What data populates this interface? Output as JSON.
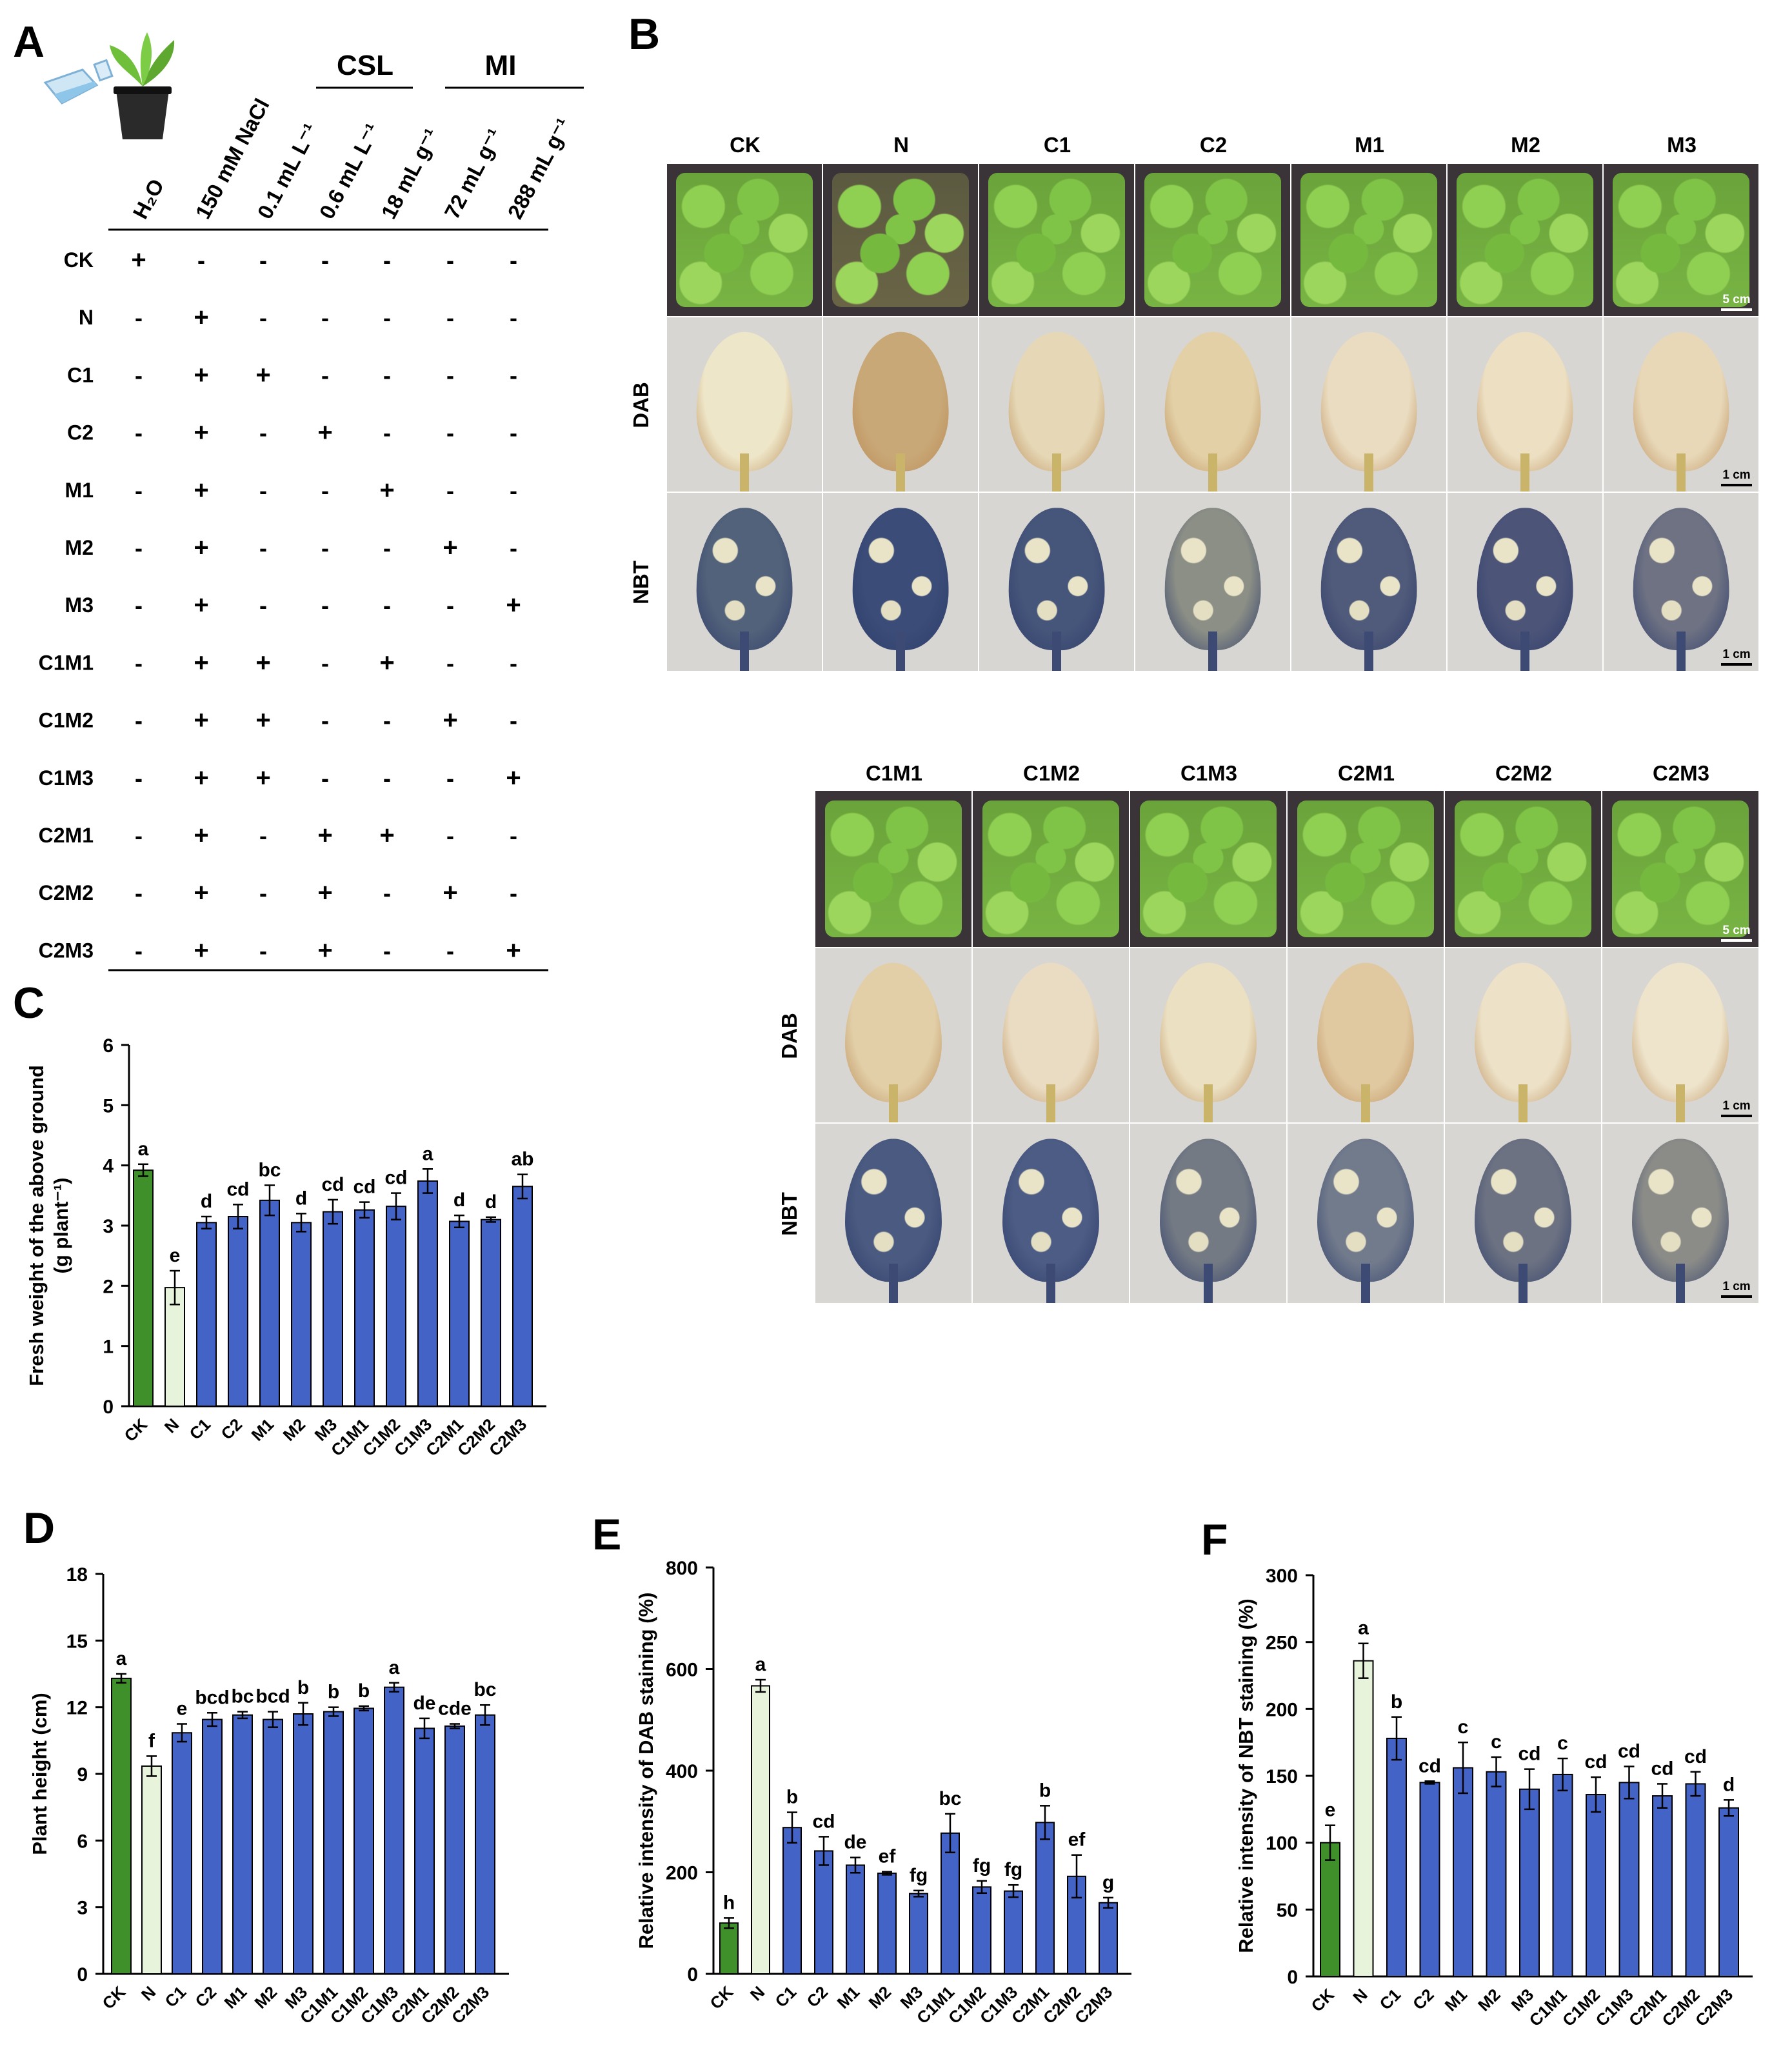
{
  "panel_labels": [
    "A",
    "B",
    "C",
    "D",
    "E",
    "F"
  ],
  "tableA": {
    "group_headers": [
      {
        "label": "CSL"
      },
      {
        "label": "MI"
      }
    ],
    "column_headers": [
      "H₂O",
      "150 mM NaCl",
      "0.1 mL L⁻¹",
      "0.6 mL L⁻¹",
      "18 mL g⁻¹",
      "72 mL g⁻¹",
      "288 mL g⁻¹"
    ],
    "rows": [
      {
        "name": "CK",
        "cells": [
          "+",
          "-",
          "-",
          "-",
          "-",
          "-",
          "-"
        ]
      },
      {
        "name": "N",
        "cells": [
          "-",
          "+",
          "-",
          "-",
          "-",
          "-",
          "-"
        ]
      },
      {
        "name": "C1",
        "cells": [
          "-",
          "+",
          "+",
          "-",
          "-",
          "-",
          "-"
        ]
      },
      {
        "name": "C2",
        "cells": [
          "-",
          "+",
          "-",
          "+",
          "-",
          "-",
          "-"
        ]
      },
      {
        "name": "M1",
        "cells": [
          "-",
          "+",
          "-",
          "-",
          "+",
          "-",
          "-"
        ]
      },
      {
        "name": "M2",
        "cells": [
          "-",
          "+",
          "-",
          "-",
          "-",
          "+",
          "-"
        ]
      },
      {
        "name": "M3",
        "cells": [
          "-",
          "+",
          "-",
          "-",
          "-",
          "-",
          "+"
        ]
      },
      {
        "name": "C1M1",
        "cells": [
          "-",
          "+",
          "+",
          "-",
          "+",
          "-",
          "-"
        ]
      },
      {
        "name": "C1M2",
        "cells": [
          "-",
          "+",
          "+",
          "-",
          "-",
          "+",
          "-"
        ]
      },
      {
        "name": "C1M3",
        "cells": [
          "-",
          "+",
          "+",
          "-",
          "-",
          "-",
          "+"
        ]
      },
      {
        "name": "C2M1",
        "cells": [
          "-",
          "+",
          "-",
          "+",
          "+",
          "-",
          "-"
        ]
      },
      {
        "name": "C2M2",
        "cells": [
          "-",
          "+",
          "-",
          "+",
          "-",
          "+",
          "-"
        ]
      },
      {
        "name": "C2M3",
        "cells": [
          "-",
          "+",
          "-",
          "+",
          "-",
          "-",
          "+"
        ]
      }
    ]
  },
  "panelB": {
    "row_labels": [
      "DAB",
      "NBT"
    ],
    "scale_tray": "5 cm",
    "scale_leaf": "1 cm",
    "top_columns": [
      "CK",
      "N",
      "C1",
      "C2",
      "M1",
      "M2",
      "M3"
    ],
    "bottom_columns": [
      "C1M1",
      "C1M2",
      "C1M3",
      "C2M1",
      "C2M2",
      "C2M3"
    ],
    "dab_colors_top": [
      "#eee6c8",
      "#c9a877",
      "#e6d8b6",
      "#e3d0a6",
      "#eadcc0",
      "#ecdfc2",
      "#e8d8b8"
    ],
    "dab_colors_bottom": [
      "#e2cfa8",
      "#eadcc2",
      "#ebe0c2",
      "#e0c8a0",
      "#ede2c8",
      "#eee4cc"
    ],
    "nbt_colors_top": [
      "#52627a",
      "#3b4c78",
      "#46557a",
      "#8c8f86",
      "#505a7a",
      "#4c5478",
      "#6e7283"
    ],
    "nbt_colors_bottom": [
      "#4a5a80",
      "#4c5c84",
      "#737a84",
      "#727b8c",
      "#6c7282",
      "#8b8c88"
    ]
  },
  "chart_data": [
    {
      "id": "C",
      "type": "bar",
      "ylabel": "Fresh weight of the above ground (g plant⁻¹)",
      "ylabel_lines": [
        "Fresh weight of the above ground",
        "(g plant⁻¹)"
      ],
      "ylim": [
        0,
        6
      ],
      "yticks": [
        0,
        1,
        2,
        3,
        4,
        5,
        6
      ],
      "categories": [
        "CK",
        "N",
        "C1",
        "C2",
        "M1",
        "M2",
        "M3",
        "C1M1",
        "C1M2",
        "C1M3",
        "C2M1",
        "C2M2",
        "C2M3"
      ],
      "values": [
        3.92,
        1.97,
        3.05,
        3.15,
        3.42,
        3.05,
        3.23,
        3.26,
        3.32,
        3.74,
        3.07,
        3.1,
        3.65
      ],
      "errors": [
        0.1,
        0.28,
        0.1,
        0.2,
        0.25,
        0.15,
        0.2,
        0.13,
        0.22,
        0.2,
        0.1,
        0.04,
        0.2
      ],
      "letters": [
        "a",
        "e",
        "d",
        "cd",
        "bc",
        "d",
        "cd",
        "cd",
        "cd",
        "a",
        "d",
        "d",
        "ab"
      ],
      "colors": [
        "#3f8f2a",
        "#e8f3dc",
        "#4463c6",
        "#4463c6",
        "#4463c6",
        "#4463c6",
        "#4463c6",
        "#4463c6",
        "#4463c6",
        "#4463c6",
        "#4463c6",
        "#4463c6",
        "#4463c6"
      ]
    },
    {
      "id": "D",
      "type": "bar",
      "ylabel": "Plant height (cm)",
      "ylim": [
        0,
        18
      ],
      "yticks": [
        0,
        3,
        6,
        9,
        12,
        15,
        18
      ],
      "categories": [
        "CK",
        "N",
        "C1",
        "C2",
        "M1",
        "M2",
        "M3",
        "C1M1",
        "C1M2",
        "C1M3",
        "C2M1",
        "C2M2",
        "C2M3"
      ],
      "values": [
        13.3,
        9.35,
        10.85,
        11.45,
        11.65,
        11.45,
        11.7,
        11.8,
        11.95,
        12.9,
        11.05,
        11.15,
        11.65
      ],
      "errors": [
        0.2,
        0.45,
        0.4,
        0.3,
        0.15,
        0.35,
        0.5,
        0.2,
        0.1,
        0.2,
        0.45,
        0.1,
        0.45
      ],
      "letters": [
        "a",
        "f",
        "e",
        "bcd",
        "bc",
        "bcd",
        "b",
        "b",
        "b",
        "a",
        "de",
        "cde",
        "bc"
      ],
      "colors": [
        "#3f8f2a",
        "#e8f3dc",
        "#4463c6",
        "#4463c6",
        "#4463c6",
        "#4463c6",
        "#4463c6",
        "#4463c6",
        "#4463c6",
        "#4463c6",
        "#4463c6",
        "#4463c6",
        "#4463c6"
      ]
    },
    {
      "id": "E",
      "type": "bar",
      "ylabel": "Relative intensity of DAB staining (%)",
      "ylim": [
        0,
        800
      ],
      "yticks": [
        0,
        200,
        400,
        600,
        800
      ],
      "categories": [
        "CK",
        "N",
        "C1",
        "C2",
        "M1",
        "M2",
        "M3",
        "C1M1",
        "C1M2",
        "C1M3",
        "C2M1",
        "C2M2",
        "C2M3"
      ],
      "values": [
        100,
        567,
        288,
        242,
        214,
        198,
        158,
        277,
        171,
        163,
        298,
        192,
        140
      ],
      "errors": [
        10,
        12,
        30,
        28,
        15,
        3,
        6,
        38,
        12,
        12,
        33,
        42,
        10
      ],
      "letters": [
        "h",
        "a",
        "b",
        "cd",
        "de",
        "ef",
        "fg",
        "bc",
        "fg",
        "fg",
        "b",
        "ef",
        "g"
      ],
      "colors": [
        "#3f8f2a",
        "#e8f3dc",
        "#4463c6",
        "#4463c6",
        "#4463c6",
        "#4463c6",
        "#4463c6",
        "#4463c6",
        "#4463c6",
        "#4463c6",
        "#4463c6",
        "#4463c6",
        "#4463c6"
      ]
    },
    {
      "id": "F",
      "type": "bar",
      "ylabel": "Relative intensity of NBT staining (%)",
      "ylim": [
        0,
        300
      ],
      "yticks": [
        0,
        50,
        100,
        150,
        200,
        250,
        300
      ],
      "categories": [
        "CK",
        "N",
        "C1",
        "C2",
        "M1",
        "M2",
        "M3",
        "C1M1",
        "C1M2",
        "C1M3",
        "C2M1",
        "C2M2",
        "C2M3"
      ],
      "values": [
        100,
        236,
        178,
        145,
        156,
        153,
        140,
        151,
        136,
        145,
        135,
        144,
        126
      ],
      "errors": [
        13,
        13,
        16,
        1,
        19,
        11,
        15,
        12,
        13,
        12,
        9,
        9,
        6
      ],
      "letters": [
        "e",
        "a",
        "b",
        "cd",
        "c",
        "c",
        "cd",
        "c",
        "cd",
        "cd",
        "cd",
        "cd",
        "d"
      ],
      "colors": [
        "#3f8f2a",
        "#e8f3dc",
        "#4463c6",
        "#4463c6",
        "#4463c6",
        "#4463c6",
        "#4463c6",
        "#4463c6",
        "#4463c6",
        "#4463c6",
        "#4463c6",
        "#4463c6",
        "#4463c6"
      ]
    }
  ]
}
